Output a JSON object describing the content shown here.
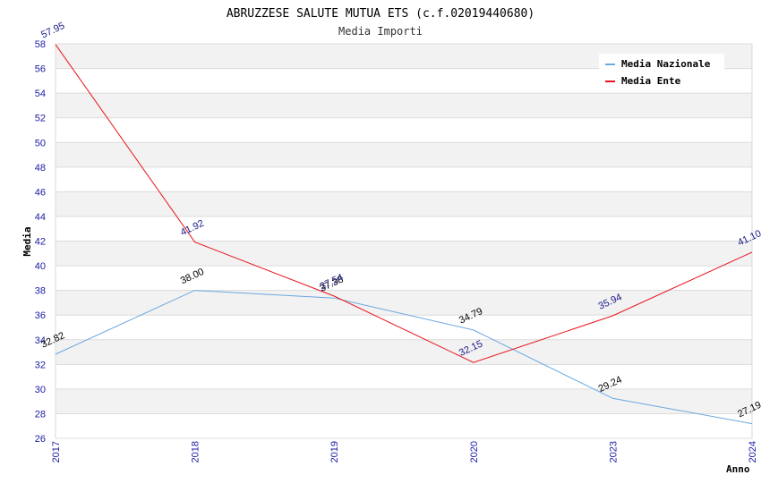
{
  "chart_data": {
    "type": "line",
    "title": "ABRUZZESE SALUTE MUTUA ETS (c.f.02019440680)",
    "subtitle": "Media Importi",
    "xlabel": "Anno",
    "ylabel": "Media",
    "categories": [
      "2017",
      "2018",
      "2019",
      "2020",
      "2023",
      "2024"
    ],
    "ylim": [
      26,
      58
    ],
    "ytick_step": 2,
    "grid": "horizontal bands",
    "legend_position": "top-right",
    "series": [
      {
        "name": "Media Nazionale",
        "color": "#6aa8e0",
        "label_color": "#000000",
        "values": [
          32.82,
          38.0,
          37.38,
          34.79,
          29.24,
          27.19
        ],
        "labels": [
          "32.82",
          "38.00",
          "37.38",
          "34.79",
          "29.24",
          "27.19"
        ]
      },
      {
        "name": "Media Ente",
        "color": "#e8141c",
        "label_color": "#1a1a8a",
        "values": [
          57.95,
          41.92,
          37.54,
          32.15,
          35.94,
          41.1
        ],
        "labels": [
          "57.95",
          "41.92",
          "37.54",
          "32.15",
          "35.94",
          "41.10"
        ]
      }
    ]
  }
}
